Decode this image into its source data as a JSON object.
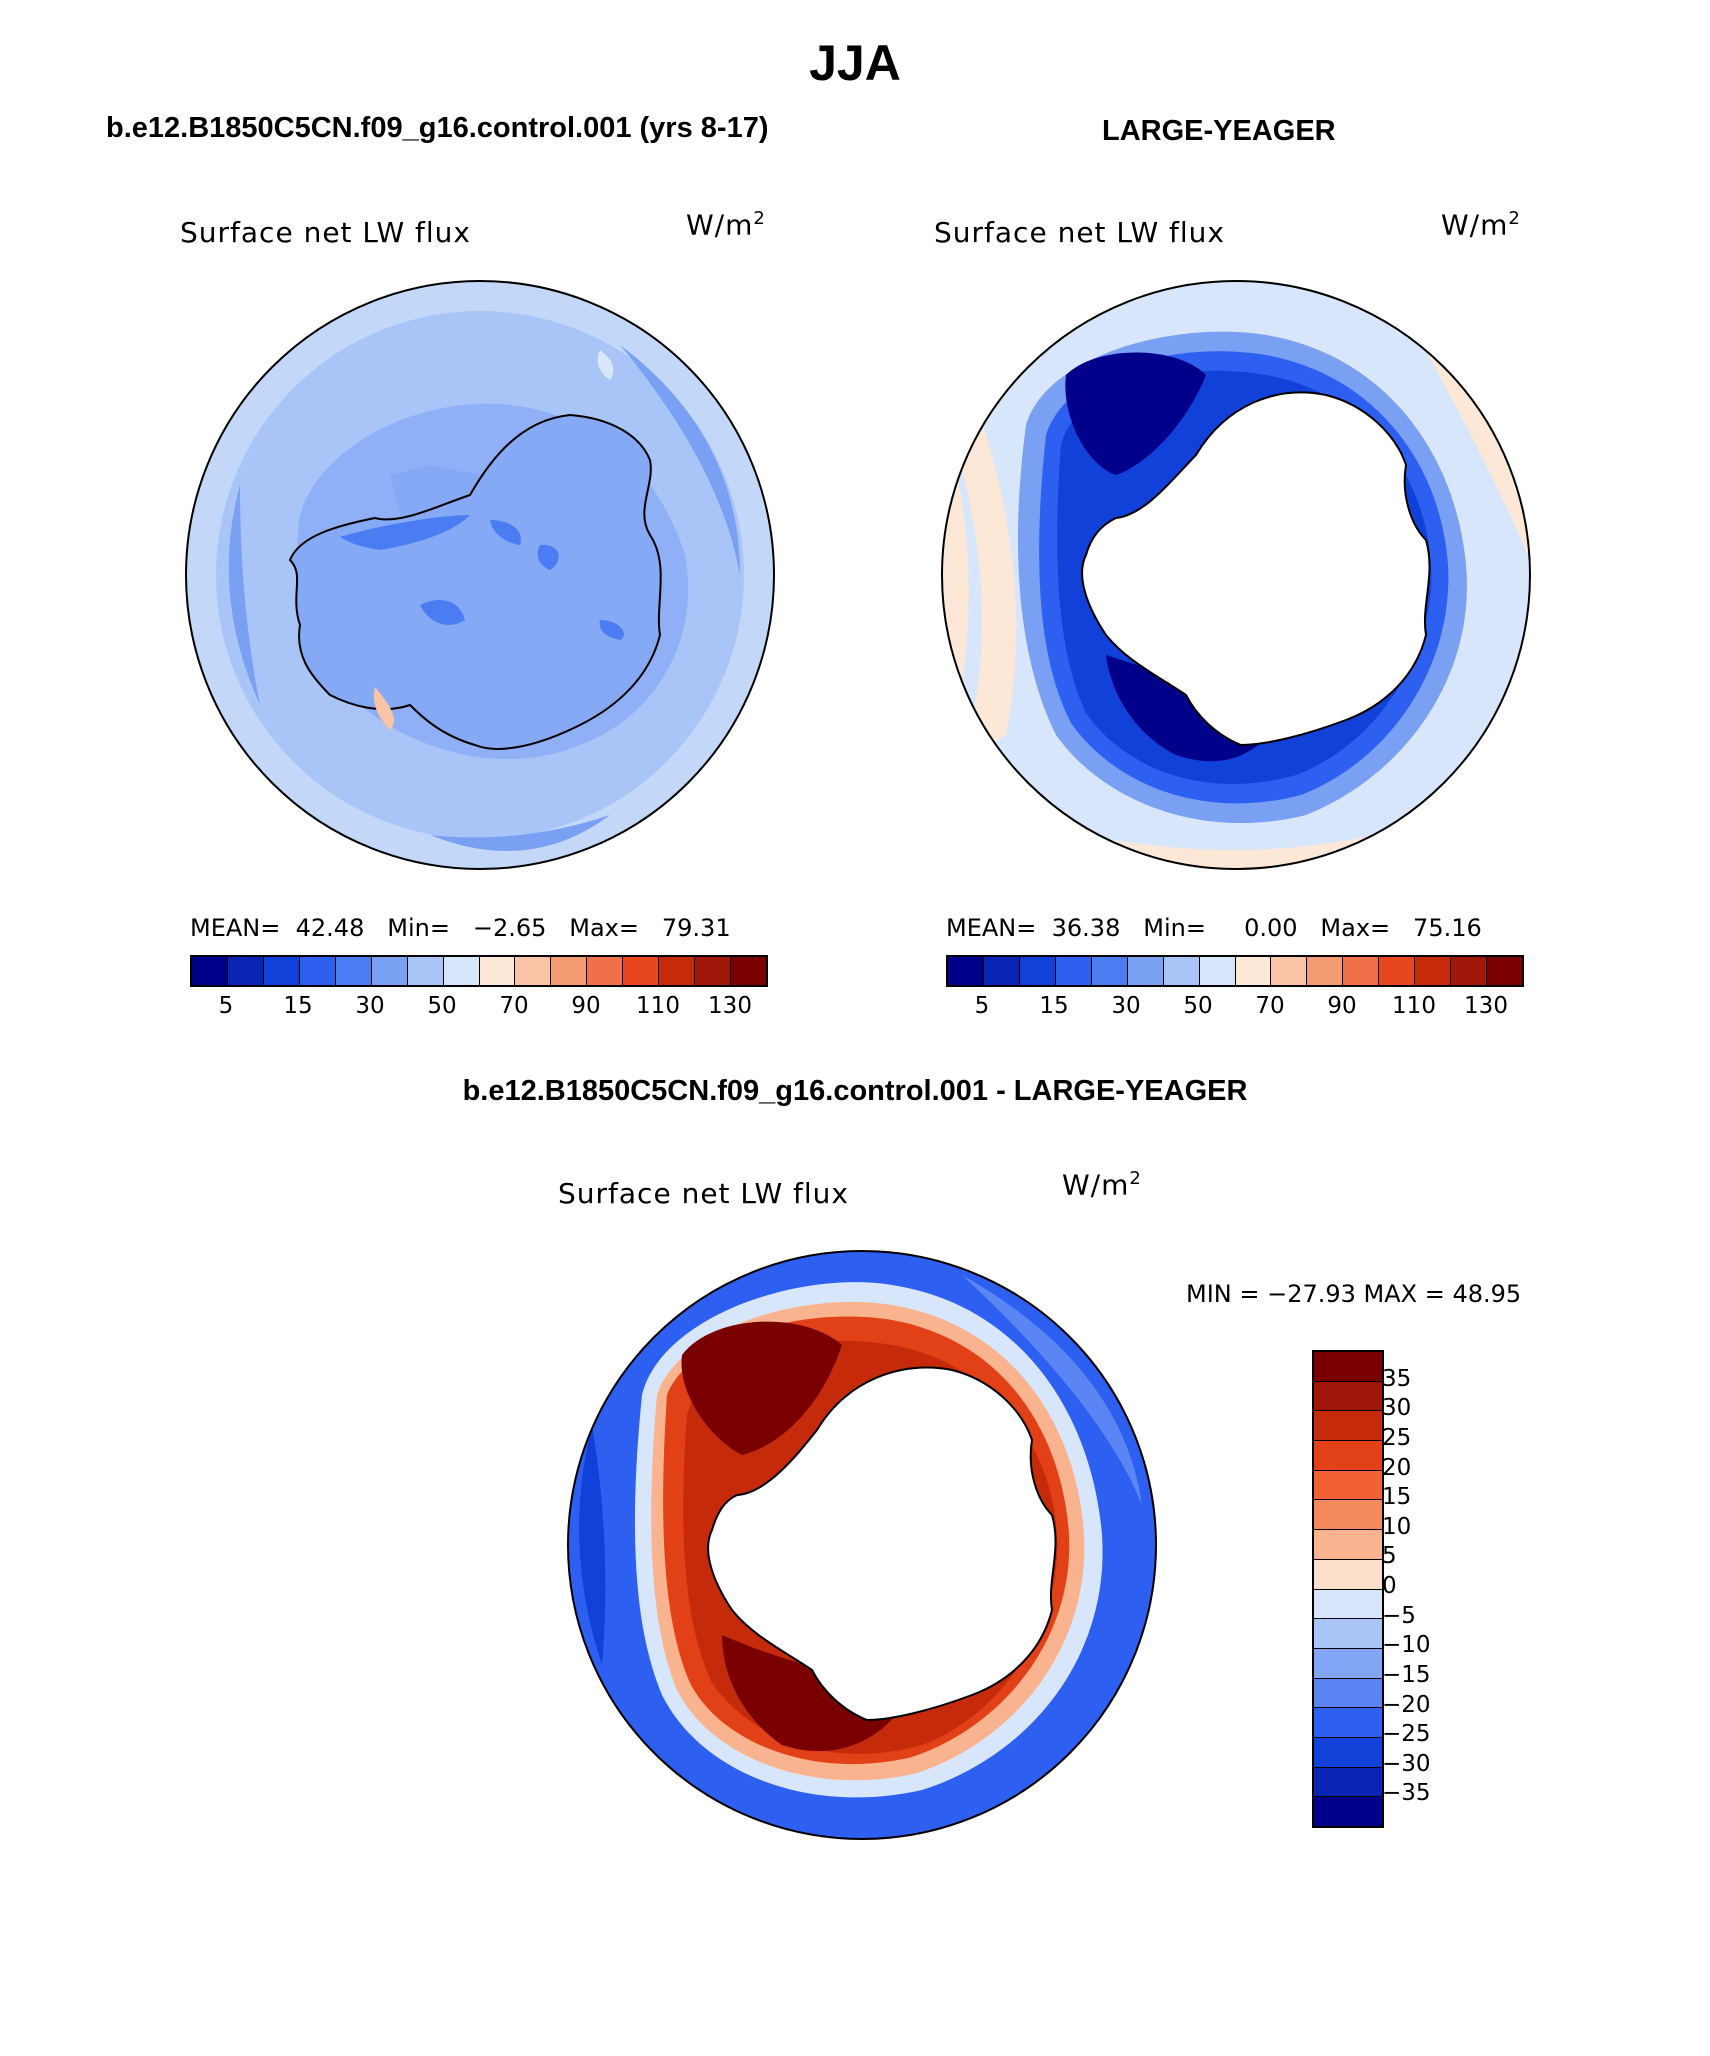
{
  "page": {
    "title": "JJA"
  },
  "panels": [
    {
      "id": "left",
      "header": "b.e12.B1850C5CN.f09_g16.control.001 (yrs 8-17)",
      "variable": "Surface net LW flux",
      "units_base": "W/m",
      "units_exp": "2",
      "stats": {
        "mean_label": "MEAN=",
        "mean": "42.48",
        "min_label": "Min=",
        "min": "−2.65",
        "max_label": "Max=",
        "max": "79.31"
      }
    },
    {
      "id": "right",
      "header": "LARGE-YEAGER",
      "variable": "Surface net LW flux",
      "units_base": "W/m",
      "units_exp": "2",
      "stats": {
        "mean_label": "MEAN=",
        "mean": "36.38",
        "min_label": "Min=",
        "min": "0.00",
        "max_label": "Max=",
        "max": "75.16"
      }
    },
    {
      "id": "diff",
      "header": "b.e12.B1850C5CN.f09_g16.control.001 - LARGE-YEAGER",
      "variable": "Surface net LW flux",
      "units_base": "W/m",
      "units_exp": "2",
      "stats_line": "MIN = −27.93 MAX =   48.95"
    }
  ],
  "colorbars": {
    "top": {
      "colors": [
        "#00008b",
        "#0a24b4",
        "#1141d8",
        "#2d5ff0",
        "#4b7cf2",
        "#7aa0f4",
        "#a9c4f7",
        "#d7e6fb",
        "#fde8d8",
        "#f9c3a5",
        "#f59b73",
        "#f0704a",
        "#e8461f",
        "#c52b0b",
        "#a0170a",
        "#7a0000"
      ],
      "labels": [
        "5",
        "15",
        "30",
        "50",
        "70",
        "90",
        "110",
        "130"
      ]
    },
    "diff": {
      "colors": [
        "#7a0000",
        "#a0170a",
        "#c52b0b",
        "#e24016",
        "#f16134",
        "#f58a5c",
        "#f9b38e",
        "#fde0cc",
        "#d7e6fb",
        "#a9c4f7",
        "#82a6f5",
        "#5a85f2",
        "#2d5ff0",
        "#1141d8",
        "#0a24b4",
        "#00008b"
      ],
      "labels": [
        "35",
        "30",
        "25",
        "20",
        "15",
        "10",
        "5",
        "0",
        "−5",
        "−10",
        "−15",
        "−20",
        "−25",
        "−30",
        "−35"
      ]
    }
  }
}
